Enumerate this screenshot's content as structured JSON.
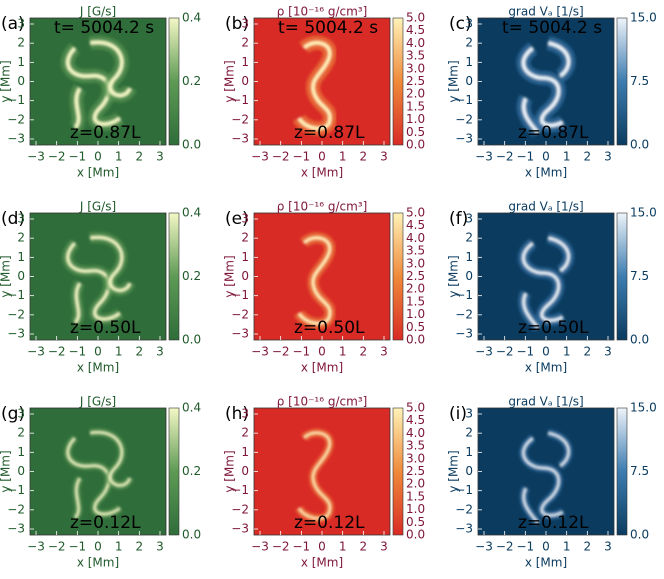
{
  "columns": [
    {
      "title": "J [G/s]",
      "colorbar": [
        "0.0",
        "0.2",
        "0.4"
      ],
      "bg": "#2f6d3a",
      "mid": "#5e9a55",
      "hi": "#f4f8c6",
      "ink": "#1f5a2a"
    },
    {
      "title": "ρ [10⁻¹⁶ g/cm³]",
      "colorbar": [
        "0.0",
        "0.5",
        "1.0",
        "1.5",
        "2.0",
        "2.5",
        "3.0",
        "3.5",
        "4.0",
        "4.5",
        "5.0"
      ],
      "bg": "#d92b26",
      "mid": "#ef8a3a",
      "hi": "#fff2b8",
      "ink": "#7e1538"
    },
    {
      "title": "grad Vₐ [1/s]",
      "colorbar": [
        "0.0",
        "7.5",
        "15.0"
      ],
      "bg": "#0b3c60",
      "mid": "#3c7cb0",
      "hi": "#eef4fa",
      "ink": "#0b3c60"
    }
  ],
  "time": "t= 5004.2 s",
  "rows": [
    {
      "panels": [
        "(a)",
        "(b)",
        "(c)"
      ],
      "z": "z=0.87L"
    },
    {
      "panels": [
        "(d)",
        "(e)",
        "(f)"
      ],
      "z": "z=0.50L"
    },
    {
      "panels": [
        "(g)",
        "(h)",
        "(i)"
      ],
      "z": "z=0.12L"
    }
  ],
  "axis": {
    "ticks": [
      "−3",
      "−2",
      "−1",
      "0",
      "1",
      "2",
      "3"
    ],
    "xlabel": "x [Mm]",
    "ylabel": "y [Mm]"
  }
}
